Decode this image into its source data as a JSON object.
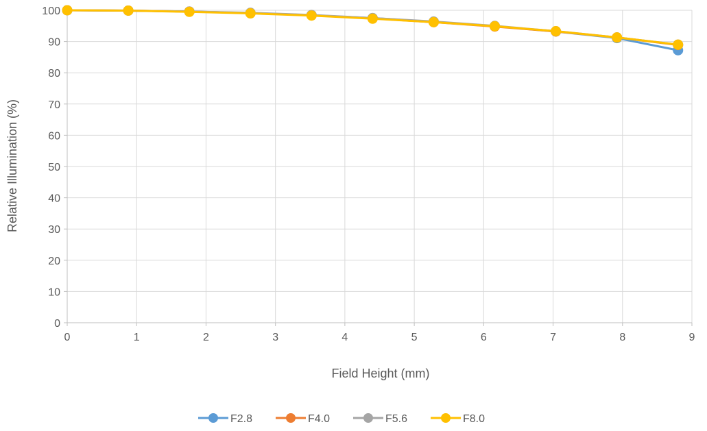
{
  "chart_data": {
    "type": "line",
    "xlabel": "Field Height (mm)",
    "ylabel": "Relative Illumination (%)",
    "xlim": [
      0,
      9
    ],
    "ylim": [
      0,
      100
    ],
    "x_ticks": [
      0,
      1,
      2,
      3,
      4,
      5,
      6,
      7,
      8,
      9
    ],
    "y_ticks": [
      0,
      10,
      20,
      30,
      40,
      50,
      60,
      70,
      80,
      90,
      100
    ],
    "grid": true,
    "legend_position": "bottom",
    "x": [
      0,
      0.88,
      1.76,
      2.64,
      3.52,
      4.4,
      5.28,
      6.16,
      7.04,
      7.92,
      8.8
    ],
    "series": [
      {
        "name": "F2.8",
        "color": "#5B9BD5",
        "values": [
          100,
          99.9,
          99.6,
          99.1,
          98.4,
          97.5,
          96.3,
          94.9,
          93.2,
          91.1,
          87.2
        ]
      },
      {
        "name": "F4.0",
        "color": "#ED7D31",
        "values": [
          100,
          99.9,
          99.6,
          99.1,
          98.4,
          97.4,
          96.2,
          94.8,
          93.2,
          91.3,
          88.9
        ]
      },
      {
        "name": "F5.6",
        "color": "#A5A5A5",
        "values": [
          100,
          99.9,
          99.6,
          99.2,
          98.5,
          97.5,
          96.4,
          95.0,
          93.3,
          91.3,
          89.0
        ]
      },
      {
        "name": "F8.0",
        "color": "#FFC000",
        "values": [
          100,
          99.9,
          99.5,
          99.0,
          98.3,
          97.3,
          96.2,
          94.9,
          93.3,
          91.3,
          89.0
        ]
      }
    ]
  }
}
